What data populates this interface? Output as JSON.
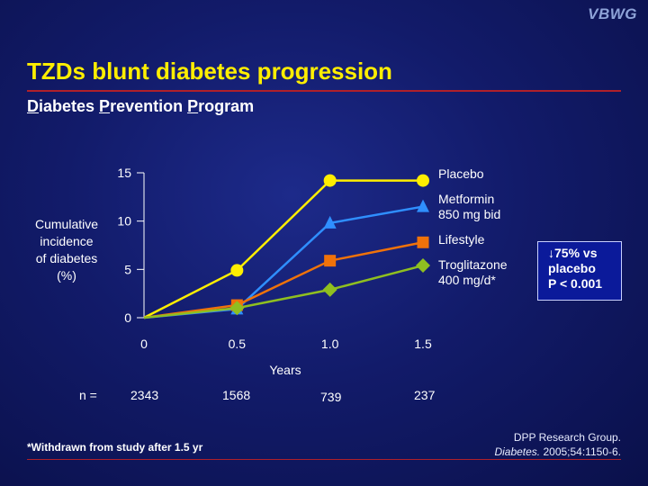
{
  "slide": {
    "logo": "VBWG",
    "title": "TZDs blunt diabetes progression",
    "subtitle_parts": [
      "D",
      "iabetes ",
      "P",
      "revention ",
      "P",
      "rogram"
    ],
    "ylabel_lines": [
      "Cumulative",
      "incidence",
      "of diabetes",
      "(%)"
    ],
    "callout_lines": [
      "↓75% vs",
      "placebo",
      "P < 0.001"
    ],
    "footnote": "*Withdrawn from study after 1.5 yr",
    "reference": {
      "line1": "DPP Research Group.",
      "journal": "Diabetes.",
      "citation": " 2005;54:1150-6."
    },
    "n_label": "n =",
    "n_values": [
      "2343",
      "1568",
      "739",
      "237"
    ]
  },
  "chart_data": {
    "type": "line",
    "x": [
      0,
      0.5,
      1.0,
      1.5
    ],
    "x_tick_labels": [
      "0",
      "0.5",
      "1.0",
      "1.5"
    ],
    "y_ticks": [
      0,
      5,
      10,
      15
    ],
    "xlabel": "Years",
    "ylabel": "Cumulative incidence of diabetes (%)",
    "ylim": [
      0,
      15
    ],
    "xlim": [
      0,
      1.5
    ],
    "grid": false,
    "legend": "right",
    "series": [
      {
        "name": "Placebo",
        "label_lines": [
          "Placebo"
        ],
        "color": "#ffee00",
        "marker": "circle",
        "values": [
          0,
          4.9,
          14.2,
          14.2
        ]
      },
      {
        "name": "Metformin 850 mg bid",
        "label_lines": [
          "Metformin",
          "850 mg bid"
        ],
        "color": "#2f8fff",
        "marker": "triangle",
        "values": [
          0,
          0.9,
          9.8,
          11.5
        ]
      },
      {
        "name": "Lifestyle",
        "label_lines": [
          "Lifestyle"
        ],
        "color": "#f0720a",
        "marker": "square",
        "values": [
          0,
          1.3,
          5.9,
          7.8
        ]
      },
      {
        "name": "Troglitazone 400 mg/d*",
        "label_lines": [
          "Troglitazone",
          "400 mg/d*"
        ],
        "color": "#8fbf20",
        "marker": "diamond",
        "values": [
          0,
          1.0,
          2.9,
          5.4
        ]
      }
    ]
  }
}
